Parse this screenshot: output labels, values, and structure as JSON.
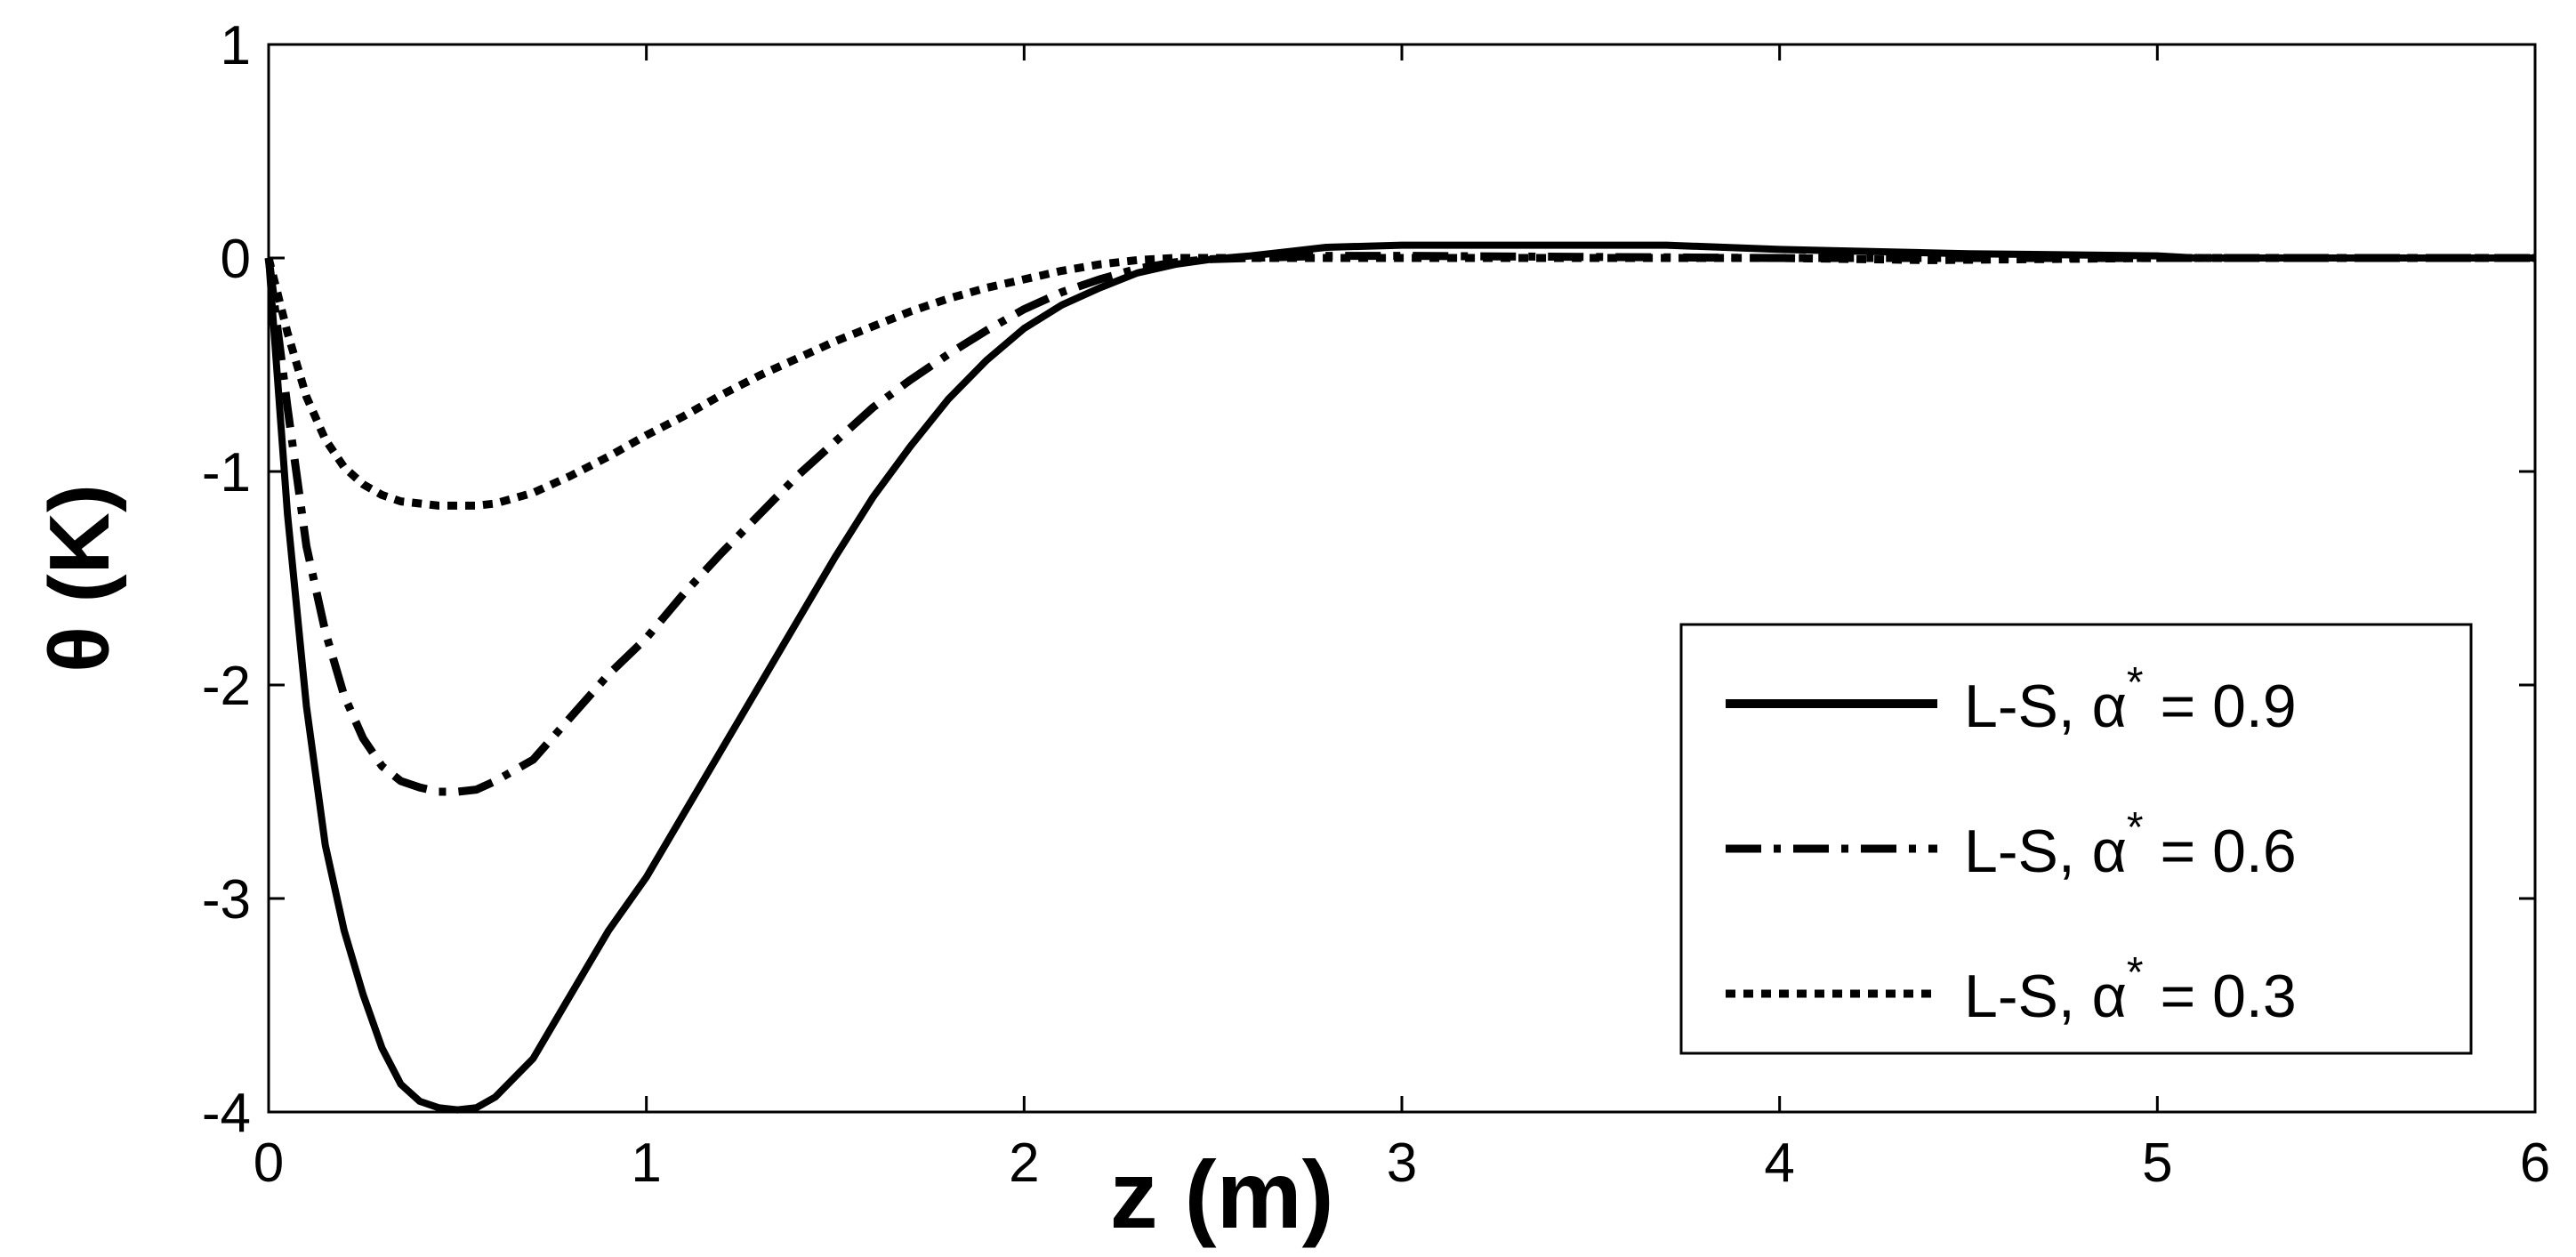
{
  "chart_data": {
    "type": "line",
    "xlabel": "z (m)",
    "ylabel": "θ (K)",
    "xlim": [
      0,
      6
    ],
    "ylim": [
      -4,
      1
    ],
    "xticks": [
      0,
      1,
      2,
      3,
      4,
      5,
      6
    ],
    "yticks": [
      -4,
      -3,
      -2,
      -1,
      0,
      1
    ],
    "legend_position": "bottom-right",
    "grid": false,
    "series": [
      {
        "name": "L-S, α* = 0.9",
        "legend_prefix": "L-S, α",
        "legend_sup": "*",
        "legend_suffix": " = 0.9",
        "style": "solid",
        "color": "#000000",
        "x": [
          0,
          0.05,
          0.1,
          0.15,
          0.2,
          0.25,
          0.3,
          0.35,
          0.4,
          0.45,
          0.5,
          0.55,
          0.6,
          0.7,
          0.8,
          0.9,
          1.0,
          1.1,
          1.2,
          1.3,
          1.4,
          1.5,
          1.6,
          1.7,
          1.8,
          1.9,
          2.0,
          2.1,
          2.2,
          2.3,
          2.4,
          2.5,
          2.6,
          2.7,
          2.8,
          3.0,
          3.5,
          3.7,
          4.0,
          4.5,
          5.0,
          5.1,
          6.0
        ],
        "y": [
          0,
          -1.2,
          -2.1,
          -2.75,
          -3.15,
          -3.45,
          -3.7,
          -3.87,
          -3.95,
          -3.98,
          -3.99,
          -3.98,
          -3.93,
          -3.75,
          -3.45,
          -3.15,
          -2.9,
          -2.6,
          -2.3,
          -2.0,
          -1.7,
          -1.4,
          -1.12,
          -0.88,
          -0.66,
          -0.48,
          -0.33,
          -0.22,
          -0.14,
          -0.07,
          -0.03,
          -0.005,
          0.01,
          0.03,
          0.05,
          0.06,
          0.06,
          0.06,
          0.04,
          0.02,
          0.01,
          0.0,
          0.0
        ]
      },
      {
        "name": "L-S, α* = 0.6",
        "legend_prefix": "L-S, α",
        "legend_sup": "*",
        "legend_suffix": " = 0.6",
        "style": "dashdot",
        "color": "#000000",
        "x": [
          0,
          0.05,
          0.1,
          0.15,
          0.2,
          0.25,
          0.3,
          0.35,
          0.4,
          0.45,
          0.5,
          0.55,
          0.6,
          0.7,
          0.8,
          0.9,
          1.0,
          1.1,
          1.2,
          1.3,
          1.4,
          1.5,
          1.6,
          1.7,
          1.8,
          1.9,
          2.0,
          2.1,
          2.2,
          2.3,
          2.4,
          2.5,
          2.6,
          2.8,
          3.0,
          4.0,
          5.0,
          6.0
        ],
        "y": [
          0,
          -0.7,
          -1.35,
          -1.75,
          -2.05,
          -2.25,
          -2.38,
          -2.45,
          -2.48,
          -2.5,
          -2.5,
          -2.49,
          -2.45,
          -2.35,
          -2.15,
          -1.95,
          -1.78,
          -1.57,
          -1.38,
          -1.2,
          -1.02,
          -0.86,
          -0.7,
          -0.57,
          -0.45,
          -0.34,
          -0.24,
          -0.16,
          -0.1,
          -0.05,
          -0.02,
          -0.005,
          0.0,
          0.01,
          0.01,
          0.0,
          0.0,
          0.0
        ]
      },
      {
        "name": "L-S, α* = 0.3",
        "legend_prefix": "L-S, α",
        "legend_sup": "*",
        "legend_suffix": " = 0.3",
        "style": "dotted",
        "color": "#000000",
        "x": [
          0,
          0.05,
          0.1,
          0.15,
          0.2,
          0.25,
          0.3,
          0.35,
          0.4,
          0.45,
          0.5,
          0.55,
          0.6,
          0.7,
          0.8,
          0.9,
          1.0,
          1.1,
          1.2,
          1.3,
          1.4,
          1.5,
          1.6,
          1.7,
          1.8,
          1.9,
          2.0,
          2.1,
          2.2,
          2.3,
          2.4,
          2.5,
          2.6,
          3.0,
          4.0,
          4.4,
          5.0,
          6.0
        ],
        "y": [
          0,
          -0.35,
          -0.65,
          -0.85,
          -0.98,
          -1.06,
          -1.11,
          -1.14,
          -1.15,
          -1.16,
          -1.16,
          -1.16,
          -1.15,
          -1.1,
          -1.02,
          -0.93,
          -0.83,
          -0.74,
          -0.64,
          -0.55,
          -0.47,
          -0.39,
          -0.32,
          -0.25,
          -0.19,
          -0.14,
          -0.1,
          -0.06,
          -0.03,
          -0.01,
          0.0,
          0.0,
          0.0,
          0.0,
          0.0,
          -0.01,
          0.0,
          0.0
        ]
      }
    ]
  }
}
